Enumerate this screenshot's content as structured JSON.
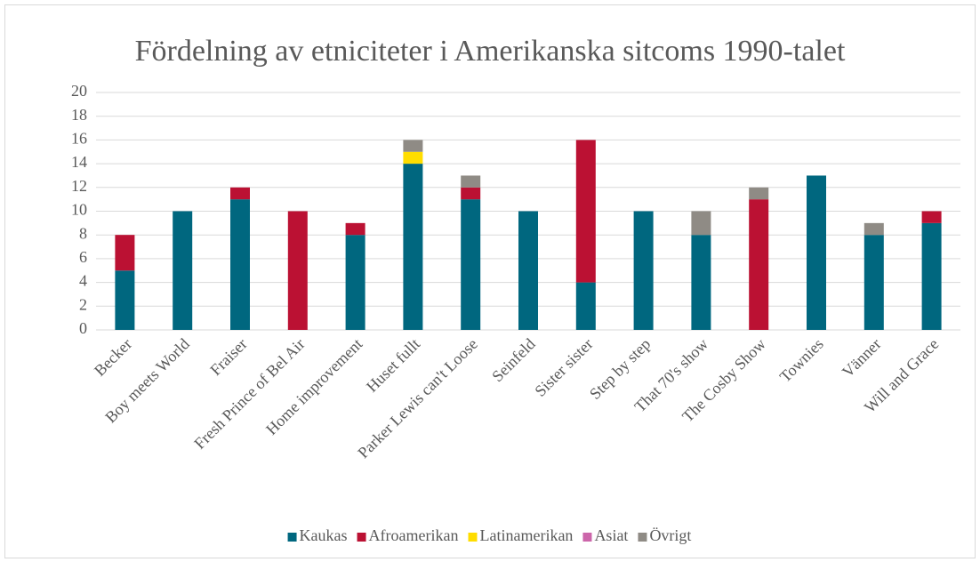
{
  "chart_data": {
    "type": "stacked_bar",
    "title": "Fördelning av etniciteter i Amerikanska sitcoms 1990-talet",
    "categories": [
      "Becker",
      "Boy meets World",
      "Fraiser",
      "Fresh Prince of Bel Air",
      "Home improvement",
      "Huset fullt",
      "Parker Lewis can't Loose",
      "Seinfeld",
      "Sister sister",
      "Step by step",
      "That 70's show",
      "The Cosby Show",
      "Townies",
      "Vänner",
      "Will and Grace"
    ],
    "series": [
      {
        "name": "Kaukas",
        "color": "#00677f",
        "values": [
          5,
          10,
          11,
          0,
          8,
          14,
          11,
          10,
          4,
          10,
          8,
          0,
          13,
          8,
          9
        ]
      },
      {
        "name": "Afroamerikan",
        "color": "#bb1133",
        "values": [
          3,
          0,
          1,
          10,
          1,
          0,
          1,
          0,
          12,
          0,
          0,
          11,
          0,
          0,
          1
        ]
      },
      {
        "name": "Latinamerikan",
        "color": "#ffdd00",
        "values": [
          0,
          0,
          0,
          0,
          0,
          1,
          0,
          0,
          0,
          0,
          0,
          0,
          0,
          0,
          0
        ]
      },
      {
        "name": "Asiat",
        "color": "#cc66aa",
        "values": [
          0,
          0,
          0,
          0,
          0,
          0,
          0,
          0,
          0,
          0,
          0,
          0,
          0,
          0,
          0
        ]
      },
      {
        "name": "Övrigt",
        "color": "#8f8b85",
        "values": [
          0,
          0,
          0,
          0,
          0,
          1,
          1,
          0,
          0,
          0,
          2,
          1,
          0,
          1,
          0
        ]
      }
    ],
    "ylim": [
      0,
      20
    ],
    "yticks": [
      0,
      2,
      4,
      6,
      8,
      10,
      12,
      14,
      16,
      18,
      20
    ],
    "grid": true,
    "legend": "bottom"
  }
}
